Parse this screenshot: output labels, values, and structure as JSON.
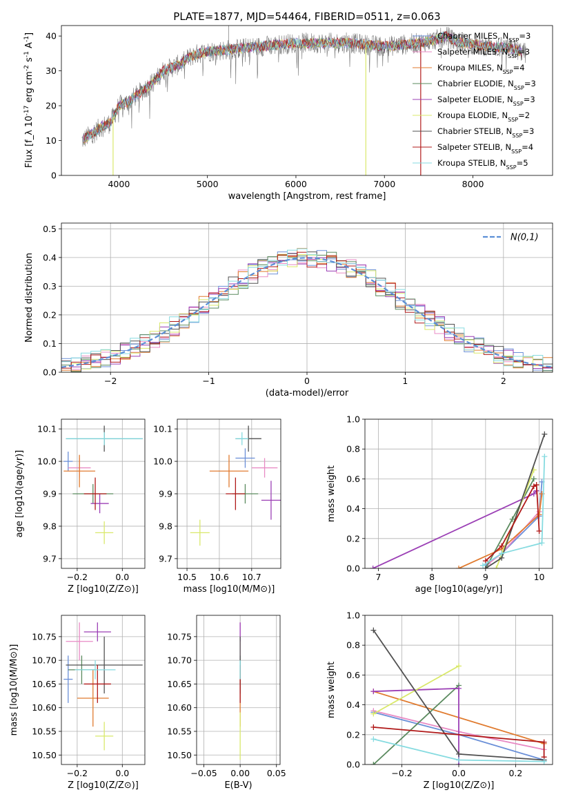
{
  "figure": {
    "title": "PLATE=1877, MJD=54464, FIBERID=0511, z=0.063"
  },
  "colors": {
    "models": [
      "#6a8fd8",
      "#e88ac4",
      "#e07a2e",
      "#5a8a5e",
      "#9b3fb5",
      "#d9e86a",
      "#505050",
      "#b01818",
      "#86dbe0"
    ]
  },
  "chart_data": [
    {
      "id": "spectrum",
      "type": "line",
      "xlabel": "wavelength [Angstrom, rest frame]",
      "ylabel": "Flux [f_λ 10^-17 erg cm^-2 s^-1 A^-1]",
      "xlim": [
        3350,
        8900
      ],
      "ylim": [
        0,
        43
      ],
      "xticks": [
        4000,
        5000,
        6000,
        7000,
        8000
      ],
      "yticks": [
        0,
        10,
        20,
        30,
        40
      ],
      "legend_position": "right",
      "series_names": [
        "Chabrier MILES, N_SSP=3",
        "Salpeter MILES, N_SSP=3",
        "Kroupa MILES, N_SSP=4",
        "Chabrier ELODIE, N_SSP=3",
        "Salpeter ELODIE, N_SSP=3",
        "Kroupa ELODIE, N_SSP=2",
        "Chabrier STELIB, N_SSP=3",
        "Salpeter STELIB, N_SSP=4",
        "Kroupa STELIB, N_SSP=5"
      ],
      "continuum": {
        "x": [
          3580,
          3700,
          3800,
          3900,
          4000,
          4100,
          4200,
          4300,
          4400,
          4500,
          4600,
          4700,
          4800,
          4900,
          5000,
          5200,
          5400,
          5600,
          5800,
          6000,
          6200,
          6400,
          6600,
          6800,
          7000,
          7200,
          7400,
          7600,
          7700,
          7800,
          8000,
          8200,
          8400,
          8500,
          8600
        ],
        "y": [
          10,
          12,
          14,
          15,
          20,
          21,
          23,
          25,
          27,
          30,
          31,
          32,
          34,
          35,
          35.5,
          36,
          36.5,
          37,
          37.5,
          38,
          38,
          38,
          38,
          37.5,
          37,
          37.5,
          38,
          39,
          40,
          38.5,
          37.5,
          37,
          36.5,
          36,
          35
        ]
      },
      "absorption_features": [
        {
          "x": 3934,
          "y": 0
        },
        {
          "x": 6790,
          "y": 0
        },
        {
          "x": 7410,
          "y": 0
        }
      ],
      "spikes": [
        {
          "x": 5240,
          "y": 43
        },
        {
          "x": 6570,
          "y": 41
        }
      ]
    },
    {
      "id": "residual_hist",
      "type": "step",
      "xlabel": "(data-model)/error",
      "ylabel": "Normed distribution",
      "xlim": [
        -2.5,
        2.5
      ],
      "ylim": [
        0,
        0.52
      ],
      "xticks": [
        -2,
        -1,
        0,
        1,
        2
      ],
      "yticks": [
        0.0,
        0.1,
        0.2,
        0.3,
        0.4,
        0.5
      ],
      "legend_entry": "N(0,1)",
      "legend_position": "top-right",
      "bin_width": 0.1
    },
    {
      "id": "age_vs_Z",
      "type": "errorbar",
      "xlabel": "Z [log10(Z/Z⊙)]",
      "ylabel": "age [log10(age/yr)]",
      "xlim": [
        -0.27,
        0.1
      ],
      "ylim": [
        9.67,
        10.13
      ],
      "xticks": [
        -0.2,
        0.0
      ],
      "yticks": [
        9.7,
        9.8,
        9.9,
        10.0,
        10.1
      ],
      "points": [
        {
          "x": -0.24,
          "y": 10.0,
          "ex": 0.02,
          "ey": 0.03
        },
        {
          "x": -0.19,
          "y": 9.98,
          "ex": 0.05,
          "ey": 0.03
        },
        {
          "x": -0.19,
          "y": 9.97,
          "ex": 0.07,
          "ey": 0.05
        },
        {
          "x": -0.13,
          "y": 9.9,
          "ex": 0.09,
          "ey": 0.03
        },
        {
          "x": -0.1,
          "y": 9.87,
          "ex": 0.04,
          "ey": 0.03
        },
        {
          "x": -0.08,
          "y": 9.78,
          "ex": 0.04,
          "ey": 0.035
        },
        {
          "x": -0.08,
          "y": 10.07,
          "ex": 0.17,
          "ey": 0.04
        },
        {
          "x": -0.12,
          "y": 9.9,
          "ex": 0.05,
          "ey": 0.05
        },
        {
          "x": -0.08,
          "y": 10.07,
          "ex": 0.17,
          "ey": 0.02
        }
      ]
    },
    {
      "id": "age_vs_mass",
      "type": "errorbar",
      "xlabel": "mass [log10(M/M⊙)]",
      "ylabel": "",
      "xlim": [
        10.47,
        10.79
      ],
      "ylim": [
        9.67,
        10.13
      ],
      "xticks": [
        10.5,
        10.6,
        10.7
      ],
      "yticks": [
        9.7,
        9.8,
        9.9,
        10.0,
        10.1
      ],
      "points": [
        {
          "x": 10.68,
          "y": 10.01,
          "ex": 0.03,
          "ey": 0.03
        },
        {
          "x": 10.74,
          "y": 9.98,
          "ex": 0.04,
          "ey": 0.03
        },
        {
          "x": 10.63,
          "y": 9.97,
          "ex": 0.06,
          "ey": 0.05
        },
        {
          "x": 10.68,
          "y": 9.9,
          "ex": 0.04,
          "ey": 0.03
        },
        {
          "x": 10.76,
          "y": 9.88,
          "ex": 0.03,
          "ey": 0.06
        },
        {
          "x": 10.54,
          "y": 9.78,
          "ex": 0.03,
          "ey": 0.04
        },
        {
          "x": 10.69,
          "y": 10.07,
          "ex": 0.04,
          "ey": 0.04
        },
        {
          "x": 10.65,
          "y": 9.9,
          "ex": 0.03,
          "ey": 0.05
        },
        {
          "x": 10.67,
          "y": 10.07,
          "ex": 0.02,
          "ey": 0.02
        }
      ]
    },
    {
      "id": "weight_vs_age",
      "type": "line",
      "xlabel": "age [log10(age/yr)]",
      "ylabel": "mass weight",
      "xlim": [
        6.75,
        10.25
      ],
      "ylim": [
        0,
        1.0
      ],
      "xticks": [
        7,
        8,
        9,
        10
      ],
      "yticks": [
        0.0,
        0.2,
        0.4,
        0.6,
        0.8,
        1.0
      ],
      "lines": [
        {
          "x": [
            9.0,
            9.3,
            10.0,
            10.05
          ],
          "y": [
            0.02,
            0.1,
            0.35,
            0.58
          ]
        },
        {
          "x": [
            9.05,
            9.3,
            10.0,
            10.05
          ],
          "y": [
            0.03,
            0.1,
            0.38,
            0.5
          ]
        },
        {
          "x": [
            8.5,
            9.3,
            10.0,
            10.05
          ],
          "y": [
            0.0,
            0.13,
            0.36,
            0.5
          ]
        },
        {
          "x": [
            9.0,
            9.5,
            9.9
          ],
          "y": [
            0.0,
            0.33,
            0.6
          ]
        },
        {
          "x": [
            6.9,
            9.9,
            9.95
          ],
          "y": [
            0.0,
            0.5,
            0.52
          ]
        },
        {
          "x": [
            9.2,
            9.9
          ],
          "y": [
            0.0,
            0.66
          ]
        },
        {
          "x": [
            9.0,
            9.3,
            10.1
          ],
          "y": [
            0.0,
            0.07,
            0.9
          ]
        },
        {
          "x": [
            9.0,
            9.3,
            9.9,
            9.95,
            10.0
          ],
          "y": [
            0.05,
            0.15,
            0.55,
            0.56,
            0.25
          ]
        },
        {
          "x": [
            8.95,
            9.3,
            10.05,
            10.1
          ],
          "y": [
            0.02,
            0.1,
            0.17,
            0.75
          ]
        }
      ]
    },
    {
      "id": "mass_vs_Z",
      "type": "errorbar",
      "xlabel": "Z [log10(Z/Z⊙)]",
      "ylabel": "mass [log10(M/M⊙)]",
      "xlim": [
        -0.27,
        0.1
      ],
      "ylim": [
        10.48,
        10.795
      ],
      "xticks": [
        -0.2,
        0.0
      ],
      "yticks": [
        10.5,
        10.55,
        10.6,
        10.65,
        10.7,
        10.75
      ],
      "points": [
        {
          "x": -0.24,
          "y": 10.66,
          "ex": 0.02,
          "ey": 0.05
        },
        {
          "x": -0.19,
          "y": 10.74,
          "ex": 0.06,
          "ey": 0.04
        },
        {
          "x": -0.13,
          "y": 10.62,
          "ex": 0.07,
          "ey": 0.06
        },
        {
          "x": -0.18,
          "y": 10.68,
          "ex": 0.06,
          "ey": 0.03
        },
        {
          "x": -0.11,
          "y": 10.76,
          "ex": 0.06,
          "ey": 0.02
        },
        {
          "x": -0.08,
          "y": 10.54,
          "ex": 0.04,
          "ey": 0.03
        },
        {
          "x": -0.08,
          "y": 10.69,
          "ex": 0.17,
          "ey": 0.06
        },
        {
          "x": -0.11,
          "y": 10.65,
          "ex": 0.06,
          "ey": 0.04
        },
        {
          "x": -0.12,
          "y": 10.68,
          "ex": 0.09,
          "ey": 0.02
        }
      ]
    },
    {
      "id": "mass_vs_ebv",
      "type": "errorbar",
      "xlabel": "E(B-V)",
      "ylabel": "",
      "xlim": [
        -0.06,
        0.055
      ],
      "ylim": [
        10.48,
        10.795
      ],
      "xticks": [
        -0.05,
        0.0,
        0.05
      ],
      "yticks": [
        10.5,
        10.55,
        10.6,
        10.65,
        10.7,
        10.75
      ],
      "points": [
        {
          "x": 0.0,
          "y": 10.66,
          "ex": 0.0,
          "ey": 0.05
        },
        {
          "x": 0.0,
          "y": 10.74,
          "ex": 0.0,
          "ey": 0.04
        },
        {
          "x": 0.0,
          "y": 10.62,
          "ex": 0.0,
          "ey": 0.06
        },
        {
          "x": 0.0,
          "y": 10.68,
          "ex": 0.0,
          "ey": 0.03
        },
        {
          "x": 0.0,
          "y": 10.76,
          "ex": 0.0,
          "ey": 0.02
        },
        {
          "x": 0.0,
          "y": 10.54,
          "ex": 0.0,
          "ey": 0.05
        },
        {
          "x": 0.0,
          "y": 10.69,
          "ex": 0.0,
          "ey": 0.06
        },
        {
          "x": 0.0,
          "y": 10.65,
          "ex": 0.0,
          "ey": 0.04
        },
        {
          "x": 0.0,
          "y": 10.68,
          "ex": 0.0,
          "ey": 0.02
        }
      ]
    },
    {
      "id": "weight_vs_Z",
      "type": "line",
      "xlabel": "Z [log10(Z/Z⊙)]",
      "ylabel": "mass weight",
      "xlim": [
        -0.33,
        0.33
      ],
      "ylim": [
        0,
        1.0
      ],
      "xticks": [
        -0.2,
        0.0,
        0.2
      ],
      "yticks": [
        0.0,
        0.2,
        0.4,
        0.6,
        0.8,
        1.0
      ],
      "lines": [
        {
          "x": [
            -0.3,
            0.0,
            0.3
          ],
          "y": [
            0.35,
            0.2,
            0.03
          ]
        },
        {
          "x": [
            -0.3,
            0.0,
            0.3
          ],
          "y": [
            0.36,
            0.22,
            0.1
          ]
        },
        {
          "x": [
            -0.3,
            0.3
          ],
          "y": [
            0.49,
            0.14
          ]
        },
        {
          "x": [
            -0.3,
            0.0
          ],
          "y": [
            0.0,
            0.53
          ]
        },
        {
          "x": [
            -0.3,
            0.0,
            0.0
          ],
          "y": [
            0.49,
            0.51,
            0.0
          ]
        },
        {
          "x": [
            -0.3,
            0.0
          ],
          "y": [
            0.34,
            0.66
          ]
        },
        {
          "x": [
            -0.3,
            0.0,
            0.3
          ],
          "y": [
            0.9,
            0.07,
            0.03
          ]
        },
        {
          "x": [
            -0.3,
            0.3,
            0.3
          ],
          "y": [
            0.25,
            0.15,
            0.05
          ]
        },
        {
          "x": [
            -0.3,
            0.0,
            0.3
          ],
          "y": [
            0.17,
            0.03,
            0.02
          ]
        }
      ]
    }
  ]
}
